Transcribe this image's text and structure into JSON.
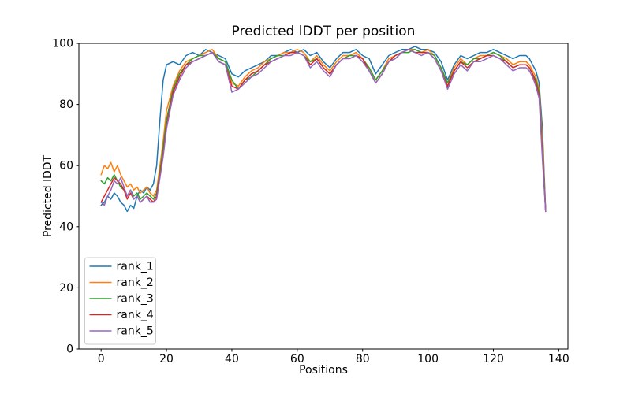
{
  "figure": {
    "background": "#ffffff",
    "axes_edge_color": "#000000",
    "legend_edge_color": "#cccccc"
  },
  "chart_data": {
    "type": "line",
    "title": "Predicted lDDT per position",
    "xlabel": "Positions",
    "ylabel": "Predicted lDDT",
    "xlim": [
      -6.8,
      142.8
    ],
    "ylim": [
      0,
      100
    ],
    "x_ticks": [
      0,
      20,
      40,
      60,
      80,
      100,
      120,
      140
    ],
    "y_ticks": [
      0,
      20,
      40,
      60,
      80,
      100
    ],
    "grid": false,
    "legend_position": "lower left",
    "x": [
      0,
      1,
      2,
      3,
      4,
      5,
      6,
      7,
      8,
      9,
      10,
      11,
      12,
      13,
      14,
      15,
      16,
      17,
      18,
      19,
      20,
      22,
      24,
      26,
      28,
      30,
      32,
      34,
      36,
      38,
      40,
      42,
      44,
      46,
      48,
      50,
      52,
      54,
      56,
      58,
      60,
      62,
      64,
      66,
      68,
      70,
      72,
      74,
      76,
      78,
      80,
      82,
      84,
      86,
      88,
      90,
      92,
      94,
      96,
      98,
      100,
      102,
      104,
      106,
      108,
      110,
      112,
      114,
      116,
      118,
      120,
      122,
      124,
      126,
      128,
      130,
      131,
      132,
      133,
      134,
      135,
      136
    ],
    "series": [
      {
        "name": "rank_1",
        "color": "#1f77b4",
        "values": [
          47,
          48,
          50,
          49,
          51,
          50,
          48,
          47,
          45,
          47,
          46,
          50,
          52,
          51,
          53,
          52,
          54,
          60,
          75,
          88,
          93,
          94,
          93,
          96,
          97,
          96,
          98,
          97,
          96,
          95,
          90,
          89,
          91,
          92,
          93,
          94,
          96,
          96,
          97,
          98,
          97,
          98,
          96,
          97,
          94,
          92,
          95,
          97,
          97,
          98,
          96,
          95,
          90,
          93,
          96,
          97,
          98,
          98,
          99,
          98,
          98,
          97,
          94,
          88,
          93,
          96,
          95,
          96,
          97,
          97,
          98,
          97,
          96,
          95,
          96,
          96,
          95,
          93,
          91,
          87,
          72,
          45
        ]
      },
      {
        "name": "rank_2",
        "color": "#ff7f0e",
        "values": [
          57,
          60,
          59,
          61,
          58,
          60,
          57,
          55,
          53,
          54,
          52,
          53,
          51,
          52,
          53,
          51,
          50,
          52,
          60,
          68,
          78,
          86,
          91,
          94,
          95,
          96,
          97,
          98,
          95,
          94,
          87,
          86,
          89,
          91,
          92,
          94,
          95,
          96,
          97,
          97,
          98,
          97,
          94,
          96,
          93,
          91,
          94,
          96,
          96,
          97,
          95,
          92,
          88,
          91,
          95,
          96,
          97,
          98,
          98,
          97,
          98,
          96,
          92,
          87,
          92,
          95,
          93,
          95,
          96,
          96,
          97,
          96,
          95,
          93,
          94,
          94,
          93,
          91,
          89,
          85,
          68,
          45
        ]
      },
      {
        "name": "rank_3",
        "color": "#2ca02c",
        "values": [
          55,
          54,
          56,
          55,
          57,
          55,
          53,
          52,
          50,
          52,
          50,
          51,
          49,
          50,
          51,
          50,
          49,
          51,
          58,
          66,
          75,
          85,
          90,
          93,
          95,
          96,
          96,
          97,
          95,
          94,
          88,
          85,
          88,
          89,
          91,
          93,
          95,
          96,
          96,
          97,
          97,
          96,
          94,
          95,
          92,
          90,
          93,
          95,
          96,
          96,
          95,
          92,
          88,
          91,
          94,
          96,
          97,
          97,
          98,
          97,
          97,
          96,
          92,
          87,
          91,
          94,
          93,
          95,
          95,
          96,
          97,
          96,
          94,
          92,
          93,
          93,
          92,
          90,
          88,
          84,
          65,
          45
        ]
      },
      {
        "name": "rank_4",
        "color": "#d62728",
        "values": [
          48,
          50,
          52,
          54,
          56,
          55,
          54,
          52,
          49,
          51,
          49,
          50,
          48,
          49,
          50,
          49,
          48,
          50,
          57,
          64,
          73,
          84,
          89,
          93,
          94,
          95,
          96,
          97,
          94,
          93,
          86,
          85,
          88,
          90,
          91,
          93,
          94,
          95,
          96,
          97,
          97,
          96,
          93,
          95,
          92,
          90,
          93,
          95,
          95,
          96,
          95,
          91,
          87,
          90,
          94,
          96,
          97,
          98,
          97,
          97,
          97,
          95,
          91,
          86,
          91,
          94,
          92,
          94,
          95,
          96,
          96,
          95,
          94,
          92,
          93,
          93,
          92,
          90,
          87,
          83,
          64,
          45
        ]
      },
      {
        "name": "rank_5",
        "color": "#9467bd",
        "values": [
          48,
          47,
          50,
          52,
          55,
          54,
          56,
          53,
          50,
          52,
          49,
          50,
          48,
          49,
          50,
          48,
          48,
          49,
          56,
          63,
          72,
          83,
          88,
          92,
          94,
          95,
          96,
          97,
          94,
          93,
          84,
          85,
          87,
          89,
          90,
          92,
          94,
          95,
          96,
          96,
          97,
          96,
          92,
          94,
          91,
          89,
          93,
          95,
          95,
          96,
          94,
          91,
          87,
          90,
          94,
          95,
          97,
          98,
          97,
          96,
          97,
          95,
          91,
          85,
          90,
          93,
          91,
          94,
          94,
          95,
          96,
          95,
          93,
          91,
          92,
          92,
          91,
          89,
          86,
          82,
          62,
          45
        ]
      }
    ]
  }
}
